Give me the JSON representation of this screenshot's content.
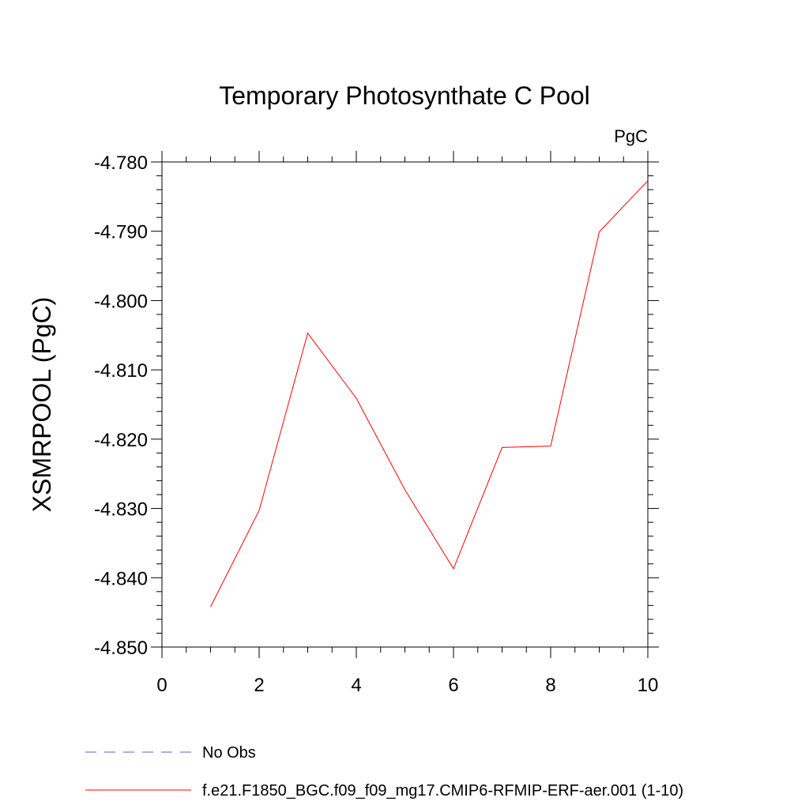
{
  "chart_data": {
    "type": "line",
    "title": "Temporary Photosynthate C Pool",
    "units_label": "PgC",
    "xlabel": "",
    "ylabel": "XSMRPOOL  (PgC)",
    "xlim": [
      0,
      10
    ],
    "ylim": [
      -4.85,
      -4.78
    ],
    "x_ticks": [
      0,
      2,
      4,
      6,
      8,
      10
    ],
    "x_tick_labels": [
      "0",
      "2",
      "4",
      "6",
      "8",
      "10"
    ],
    "y_ticks": [
      -4.85,
      -4.84,
      -4.83,
      -4.82,
      -4.81,
      -4.8,
      -4.79,
      -4.78
    ],
    "y_tick_labels": [
      "-4.850",
      "-4.840",
      "-4.830",
      "-4.820",
      "-4.810",
      "-4.800",
      "-4.790",
      "-4.780"
    ],
    "grid": false,
    "legend_position": "bottom",
    "series": [
      {
        "name": "f.e21.F1850_BGC.f09_f09_mg17.CMIP6-RFMIP-ERF-aer.001 (1-10)",
        "color": "#ff0000",
        "dash": "solid",
        "x": [
          1,
          2,
          3,
          4,
          5,
          6,
          7,
          8,
          9,
          10
        ],
        "y": [
          -4.8442,
          -4.8303,
          -4.8047,
          -4.8141,
          -4.8273,
          -4.8387,
          -4.8212,
          -4.821,
          -4.7901,
          -4.7827
        ]
      }
    ],
    "legend": [
      {
        "label": "No Obs",
        "color": "#6a5acd",
        "dash": "dashed"
      },
      {
        "label": "f.e21.F1850_BGC.f09_f09_mg17.CMIP6-RFMIP-ERF-aer.001 (1-10)",
        "color": "#ff0000",
        "dash": "solid"
      }
    ]
  }
}
